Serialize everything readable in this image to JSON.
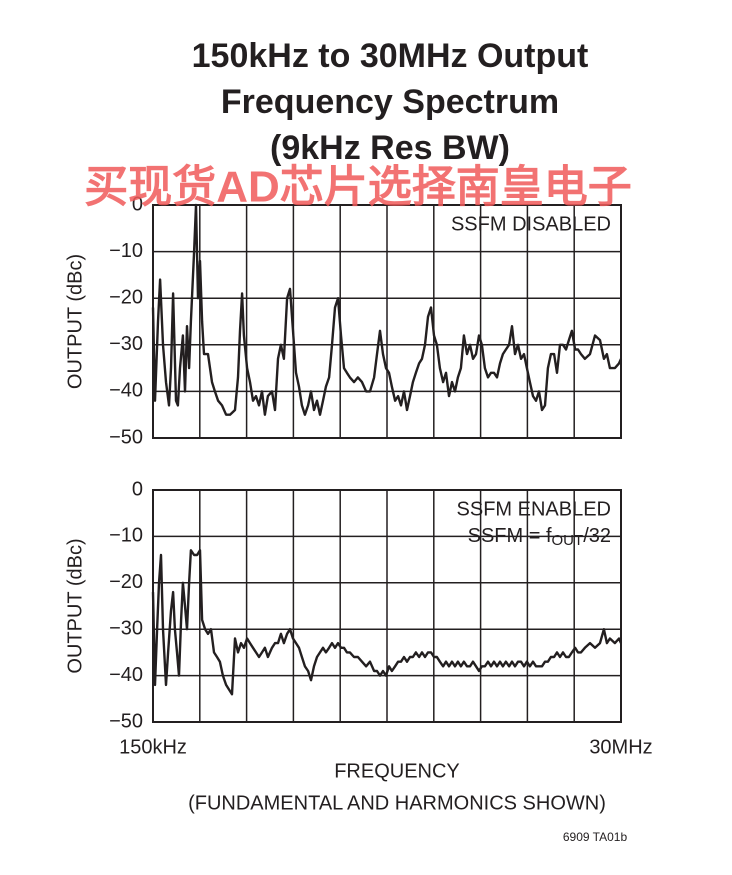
{
  "title": [
    "150kHz to 30MHz Output",
    "Frequency Spectrum",
    "(9kHz Res BW)"
  ],
  "watermark": "买现货AD芯片选择南皇电子",
  "footer": "6909 TA01b",
  "chart_data": [
    {
      "type": "line",
      "ylabel": "OUTPUT (dBc)",
      "annotation": [
        "SSFM DISABLED"
      ],
      "color": "#231f20",
      "grid": true,
      "xgrid_divisions": 10,
      "xlim": [
        0.15,
        30
      ],
      "ylim": [
        -50,
        0
      ],
      "yticks": [
        0,
        {
          "value": -10,
          "label": "−10"
        },
        {
          "value": -20,
          "label": "−20"
        },
        {
          "value": -30,
          "label": "−30"
        },
        {
          "value": -40,
          "label": "−40"
        },
        {
          "value": -50,
          "label": "−50"
        }
      ],
      "x": [
        0.15,
        0.28,
        0.47,
        0.6,
        0.79,
        0.98,
        1.17,
        1.3,
        1.43,
        1.62,
        1.74,
        1.87,
        2.06,
        2.19,
        2.32,
        2.45,
        2.57,
        2.77,
        2.89,
        3.02,
        3.15,
        3.28,
        3.4,
        3.66,
        3.91,
        4.1,
        4.3,
        4.55,
        4.81,
        5.06,
        5.38,
        5.57,
        5.7,
        5.83,
        5.95,
        6.15,
        6.34,
        6.53,
        6.72,
        6.91,
        7.1,
        7.29,
        7.48,
        7.74,
        7.93,
        8.12,
        8.31,
        8.5,
        8.7,
        8.89,
        9.08,
        9.27,
        9.46,
        9.65,
        9.84,
        10.04,
        10.23,
        10.42,
        10.61,
        10.8,
        10.99,
        11.18,
        11.38,
        11.57,
        11.76,
        11.95,
        12.14,
        12.33,
        12.52,
        12.71,
        12.97,
        13.22,
        13.48,
        13.74,
        13.99,
        14.25,
        14.44,
        14.63,
        14.82,
        15.01,
        15.2,
        15.39,
        15.59,
        15.78,
        15.97,
        16.16,
        16.35,
        16.54,
        16.73,
        16.92,
        17.12,
        17.31,
        17.5,
        17.69,
        17.88,
        18.07,
        18.26,
        18.45,
        18.65,
        18.84,
        19.03,
        19.22,
        19.41,
        19.6,
        19.79,
        19.98,
        20.18,
        20.37,
        20.56,
        20.75,
        20.94,
        21.13,
        21.32,
        21.52,
        21.71,
        21.9,
        22.09,
        22.28,
        22.47,
        22.66,
        22.86,
        23.05,
        23.24,
        23.43,
        23.62,
        23.81,
        24.0,
        24.19,
        24.39,
        24.58,
        24.77,
        24.96,
        25.15,
        25.34,
        25.53,
        25.73,
        25.92,
        26.11,
        26.3,
        26.49,
        26.68,
        26.87,
        27.07,
        27.26,
        27.45,
        27.7,
        28.02,
        28.34,
        28.66,
        28.91,
        29.1,
        29.29,
        29.61,
        29.87,
        30.0
      ],
      "values": [
        -22,
        -42,
        -25,
        -16,
        -30,
        -38,
        -43,
        -35,
        -19,
        -42,
        -43,
        -35,
        -28,
        -40,
        -26,
        -35,
        -25,
        -10,
        0,
        -20,
        -12,
        -25,
        -32,
        -32,
        -38,
        -40,
        -42,
        -43,
        -45,
        -45,
        -44,
        -37,
        -27,
        -19,
        -28,
        -35,
        -38,
        -42,
        -41,
        -43,
        -40,
        -45,
        -41,
        -40,
        -44,
        -33,
        -30,
        -33,
        -20,
        -18,
        -27,
        -36,
        -39,
        -43,
        -45,
        -43,
        -40,
        -44,
        -42,
        -45,
        -42,
        -39,
        -37,
        -30,
        -22,
        -20,
        -28,
        -35,
        -36,
        -37,
        -38,
        -37,
        -38,
        -40,
        -40,
        -37,
        -32,
        -27,
        -32,
        -35,
        -36,
        -39,
        -42,
        -41,
        -43,
        -40,
        -44,
        -41,
        -38,
        -36,
        -34,
        -33,
        -30,
        -24,
        -22,
        -28,
        -30,
        -35,
        -38,
        -36,
        -41,
        -38,
        -40,
        -37,
        -35,
        -28,
        -32,
        -30,
        -33,
        -32,
        -28,
        -30,
        -35,
        -37,
        -36,
        -36,
        -37,
        -34,
        -32,
        -31,
        -30,
        -26,
        -32,
        -30,
        -33,
        -32,
        -35,
        -38,
        -41,
        -42,
        -40,
        -44,
        -43,
        -35,
        -32,
        -32,
        -36,
        -30,
        -30,
        -31,
        -29,
        -27,
        -31,
        -31,
        -32,
        -33,
        -32,
        -28,
        -29,
        -33,
        -32,
        -35,
        -35,
        -34,
        -33
      ]
    },
    {
      "type": "line",
      "ylabel": "OUTPUT (dBc)",
      "annotation": [
        "SSFM ENABLED",
        [
          "SSFM = f",
          "OUT",
          "/32"
        ]
      ],
      "xlabel": "FREQUENCY",
      "note": "(FUNDAMENTAL AND HARMONICS SHOWN)",
      "color": "#231f20",
      "grid": true,
      "xgrid_divisions": 10,
      "xlim": [
        0.15,
        30
      ],
      "ylim": [
        -50,
        0
      ],
      "xticks": [
        {
          "value": 0.15,
          "label": "150kHz"
        },
        {
          "value": 30,
          "label": "30MHz"
        }
      ],
      "yticks": [
        0,
        {
          "value": -10,
          "label": "−10"
        },
        {
          "value": -20,
          "label": "−20"
        },
        {
          "value": -30,
          "label": "−30"
        },
        {
          "value": -40,
          "label": "−40"
        },
        {
          "value": -50,
          "label": "−50"
        }
      ],
      "x": [
        0.15,
        0.28,
        0.41,
        0.53,
        0.66,
        0.79,
        0.98,
        1.11,
        1.3,
        1.43,
        1.55,
        1.68,
        1.81,
        1.94,
        2.06,
        2.19,
        2.32,
        2.45,
        2.57,
        2.77,
        2.96,
        3.15,
        3.28,
        3.47,
        3.66,
        3.85,
        4.04,
        4.23,
        4.42,
        4.61,
        4.81,
        5.0,
        5.19,
        5.38,
        5.57,
        5.76,
        5.95,
        6.15,
        6.34,
        6.53,
        6.72,
        6.91,
        7.1,
        7.29,
        7.48,
        7.74,
        7.93,
        8.12,
        8.31,
        8.5,
        8.7,
        8.89,
        9.08,
        9.27,
        9.46,
        9.65,
        9.84,
        10.04,
        10.23,
        10.42,
        10.61,
        10.8,
        10.99,
        11.18,
        11.38,
        11.57,
        11.76,
        11.95,
        12.14,
        12.33,
        12.52,
        12.71,
        12.97,
        13.22,
        13.48,
        13.74,
        13.99,
        14.25,
        14.44,
        14.63,
        14.82,
        15.01,
        15.2,
        15.39,
        15.59,
        15.78,
        15.97,
        16.16,
        16.35,
        16.54,
        16.73,
        16.92,
        17.12,
        17.31,
        17.5,
        17.69,
        17.88,
        18.07,
        18.26,
        18.45,
        18.65,
        18.84,
        19.03,
        19.22,
        19.41,
        19.6,
        19.79,
        19.98,
        20.18,
        20.37,
        20.56,
        20.75,
        20.94,
        21.13,
        21.32,
        21.52,
        21.71,
        21.9,
        22.09,
        22.28,
        22.47,
        22.66,
        22.86,
        23.05,
        23.24,
        23.43,
        23.62,
        23.81,
        24.0,
        24.19,
        24.39,
        24.58,
        24.77,
        24.96,
        25.15,
        25.34,
        25.53,
        25.73,
        25.92,
        26.11,
        26.3,
        26.49,
        26.68,
        26.87,
        27.07,
        27.26,
        27.45,
        27.7,
        28.02,
        28.34,
        28.66,
        28.91,
        29.1,
        29.29,
        29.61,
        29.87,
        30.0
      ],
      "values": [
        -22,
        -42,
        -30,
        -20,
        -14,
        -30,
        -42,
        -35,
        -26,
        -22,
        -30,
        -35,
        -40,
        -28,
        -20,
        -25,
        -30,
        -20,
        -13,
        -14,
        -14,
        -13,
        -28,
        -30,
        -31,
        -30,
        -35,
        -36,
        -37,
        -40,
        -42,
        -43,
        -44,
        -32,
        -35,
        -33,
        -34,
        -32,
        -33,
        -34,
        -35,
        -36,
        -35,
        -34,
        -36,
        -34,
        -33,
        -33,
        -31,
        -33,
        -31,
        -30,
        -32,
        -33,
        -34,
        -36,
        -38,
        -39,
        -41,
        -38,
        -36,
        -35,
        -34,
        -35,
        -34,
        -33,
        -34,
        -33,
        -34,
        -34,
        -35,
        -35,
        -36,
        -36,
        -37,
        -38,
        -37,
        -39,
        -39,
        -40,
        -39,
        -40,
        -38,
        -39,
        -38,
        -37,
        -37,
        -36,
        -37,
        -36,
        -36,
        -35,
        -36,
        -35,
        -36,
        -35,
        -35,
        -36,
        -36,
        -37,
        -38,
        -37,
        -38,
        -37,
        -38,
        -37,
        -38,
        -37,
        -38,
        -38,
        -37,
        -38,
        -39,
        -38,
        -38,
        -37,
        -38,
        -37,
        -38,
        -37,
        -38,
        -37,
        -38,
        -37,
        -38,
        -37,
        -37,
        -38,
        -37,
        -38,
        -37,
        -38,
        -38,
        -38,
        -37,
        -37,
        -36,
        -36,
        -35,
        -36,
        -35,
        -36,
        -36,
        -35,
        -34,
        -35,
        -35,
        -34,
        -33,
        -34,
        -33,
        -30,
        -33,
        -32,
        -33,
        -32,
        -33
      ]
    }
  ]
}
